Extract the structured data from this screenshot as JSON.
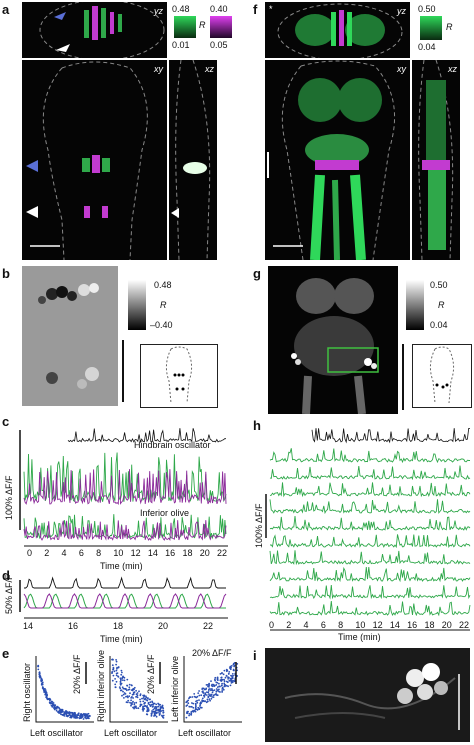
{
  "panels": {
    "a": {
      "label": "a",
      "views": [
        "yz",
        "xy",
        "xz"
      ],
      "colorbar": {
        "green_max": "0.48",
        "green_min": "0.01",
        "magenta_max": "0.40",
        "magenta_min": "0.05",
        "r_label": "R"
      }
    },
    "f": {
      "label": "f",
      "views": [
        "yz",
        "xy",
        "xz"
      ],
      "star": "*",
      "colorbar": {
        "max": "0.50",
        "min": "0.04",
        "r_label": "R"
      }
    },
    "b": {
      "label": "b",
      "colorbar": {
        "max": "0.48",
        "min": "–0.40",
        "r_label": "R"
      }
    },
    "g": {
      "label": "g",
      "colorbar": {
        "max": "0.50",
        "min": "0.04",
        "r_label": "R"
      }
    },
    "c": {
      "label": "c",
      "ylabel": "100% ΔF/F",
      "trace_label_top": "Hindbrain oscillator",
      "trace_label_bottom": "Inferior olive",
      "xlabel": "Time (min)",
      "ticks": [
        "0",
        "2",
        "4",
        "6",
        "8",
        "10",
        "12",
        "14",
        "16",
        "18",
        "20",
        "22"
      ]
    },
    "d": {
      "label": "d",
      "ylabel": "50% ΔF/F",
      "xlabel": "Time (min)",
      "ticks": [
        "14",
        "16",
        "18",
        "20",
        "22"
      ]
    },
    "e": {
      "label": "e",
      "plots": [
        {
          "ylabel": "Right oscillator",
          "xlabel": "Left oscillator",
          "scale": "20% ΔF/F"
        },
        {
          "ylabel": "Right inferior olive",
          "xlabel": "Left oscillator",
          "scale": "20% ΔF/F"
        },
        {
          "ylabel": "Left inferior olive",
          "xlabel": "Left oscillator",
          "scale": "20% ΔF/F"
        }
      ]
    },
    "h": {
      "label": "h",
      "ylabel": "100% ΔF/F",
      "xlabel": "Time (min)",
      "ticks": [
        "0",
        "2",
        "4",
        "6",
        "8",
        "10",
        "12",
        "14",
        "16",
        "18",
        "20",
        "22"
      ]
    },
    "i": {
      "label": "i"
    }
  },
  "colors": {
    "green": "#2fa84a",
    "magenta": "#8b2a9a",
    "black": "#111111",
    "blue_arrow": "#5a6fd6",
    "scatter": "#2b4fb3"
  }
}
